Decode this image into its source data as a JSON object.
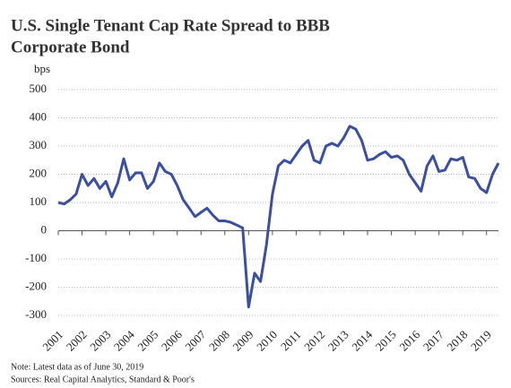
{
  "chart_data": {
    "type": "line",
    "title": [
      "U.S. Single Tenant Cap Rate Spread to BBB",
      "Corporate Bond"
    ],
    "ylabel": "bps",
    "notes": [
      "Note: Latest data as of June 30, 2019",
      "Sources: Real Capital Analytics, Standard & Poor's"
    ],
    "x": [
      2001,
      2001.25,
      2001.5,
      2001.75,
      2002,
      2002.25,
      2002.5,
      2002.75,
      2003,
      2003.25,
      2003.5,
      2003.75,
      2004,
      2004.25,
      2004.5,
      2004.75,
      2005,
      2005.25,
      2005.5,
      2005.75,
      2006,
      2006.25,
      2006.5,
      2006.75,
      2007,
      2007.25,
      2007.5,
      2007.75,
      2008,
      2008.25,
      2008.5,
      2008.75,
      2009,
      2009.25,
      2009.5,
      2009.75,
      2010,
      2010.25,
      2010.5,
      2010.75,
      2011,
      2011.25,
      2011.5,
      2011.75,
      2012,
      2012.25,
      2012.5,
      2012.75,
      2013,
      2013.25,
      2013.5,
      2013.75,
      2014,
      2014.25,
      2014.5,
      2014.75,
      2015,
      2015.25,
      2015.5,
      2015.75,
      2016,
      2016.25,
      2016.5,
      2016.75,
      2017,
      2017.25,
      2017.5,
      2017.75,
      2018,
      2018.25,
      2018.5,
      2018.75,
      2019,
      2019.25,
      2019.5
    ],
    "series": [
      {
        "name": "Cap rate spread",
        "color": "#3a4fa0",
        "values": [
          100,
          95,
          110,
          130,
          200,
          160,
          185,
          150,
          175,
          120,
          170,
          255,
          180,
          205,
          205,
          150,
          175,
          240,
          210,
          200,
          160,
          110,
          80,
          50,
          65,
          80,
          55,
          35,
          35,
          30,
          20,
          10,
          -270,
          -150,
          -180,
          -50,
          130,
          230,
          250,
          240,
          270,
          300,
          320,
          250,
          240,
          300,
          310,
          300,
          330,
          370,
          360,
          320,
          250,
          255,
          270,
          280,
          260,
          265,
          250,
          200,
          170,
          140,
          230,
          265,
          210,
          215,
          255,
          250,
          260,
          190,
          185,
          150,
          135,
          200,
          240
        ]
      }
    ],
    "xlim": [
      2001,
      2019.5
    ],
    "xticks": [
      2001,
      2002,
      2003,
      2004,
      2005,
      2006,
      2007,
      2008,
      2009,
      2010,
      2011,
      2012,
      2013,
      2014,
      2015,
      2016,
      2017,
      2018,
      2019
    ],
    "ylim": [
      -300,
      500
    ],
    "yticks": [
      -300,
      -200,
      -100,
      0,
      100,
      200,
      300,
      400,
      500
    ],
    "grid": true
  }
}
